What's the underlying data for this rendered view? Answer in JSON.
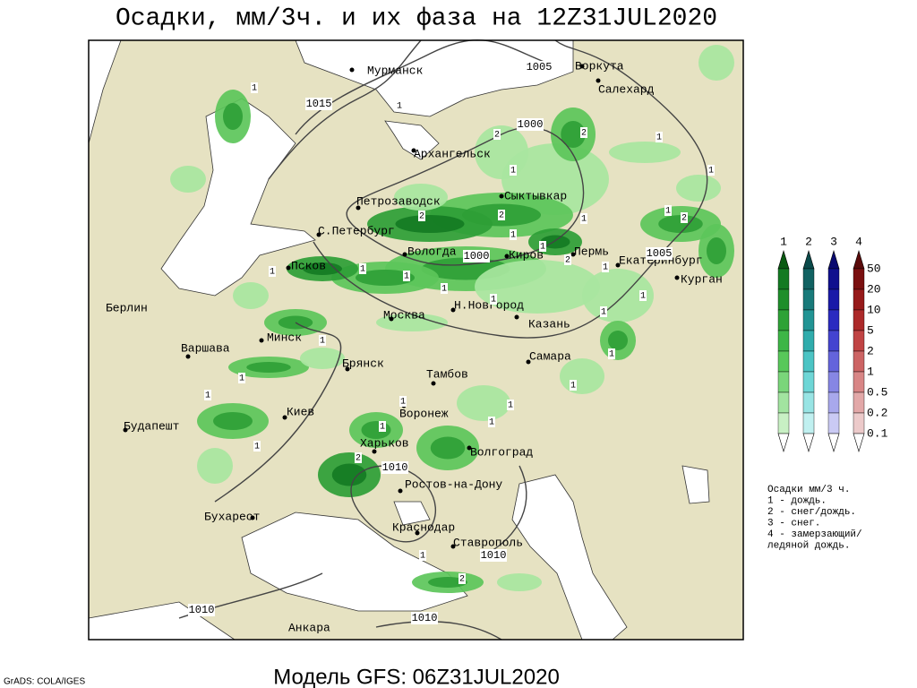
{
  "title": "Осадки, мм/3ч. и их фаза на 12Z31JUL2020",
  "footer": "Модель GFS: 06Z31JUL2020",
  "credit": "GrADS: COLA/IGES",
  "cities": [
    "Мурманск",
    "Воркута",
    "Салехард",
    "Архангельск",
    "Петрозаводск",
    "Сыктывкар",
    "С.Петербург",
    "Вологда",
    "Киров",
    "Пермь",
    "Екатеринбург",
    "Курган",
    "Псков",
    "Берлин",
    "Москва",
    "Н.Новгород",
    "Казань",
    "Минск",
    "Варшава",
    "Брянск",
    "Самара",
    "Тамбов",
    "Киев",
    "Воронеж",
    "Будапешт",
    "Харьков",
    "Волгоград",
    "Ростов-на-Дону",
    "Бухарест",
    "Краснодар",
    "Ставрополь",
    "Анкара"
  ],
  "isobars": [
    1005,
    1015,
    1000,
    1000,
    1005,
    1010,
    1010,
    1010,
    1010
  ],
  "phase_markers": [
    1,
    1,
    1,
    2,
    2,
    1,
    1,
    2,
    1,
    1,
    2,
    1,
    1,
    1,
    2,
    1,
    1,
    1,
    1,
    1,
    2,
    1,
    1,
    1,
    1,
    1,
    1,
    1,
    2,
    1,
    1,
    1,
    2,
    1,
    1,
    1
  ],
  "legend": {
    "columns": [
      1,
      2,
      3,
      4
    ],
    "levels": [
      50,
      20,
      10,
      5,
      2,
      1,
      0.5,
      0.2,
      0.1
    ],
    "caption": [
      "Осадки мм/3 ч.",
      "1 - дождь.",
      "2 - снег/дождь.",
      "3 - снег.",
      "4 - замерзающий/",
      "ледяной дождь."
    ]
  }
}
